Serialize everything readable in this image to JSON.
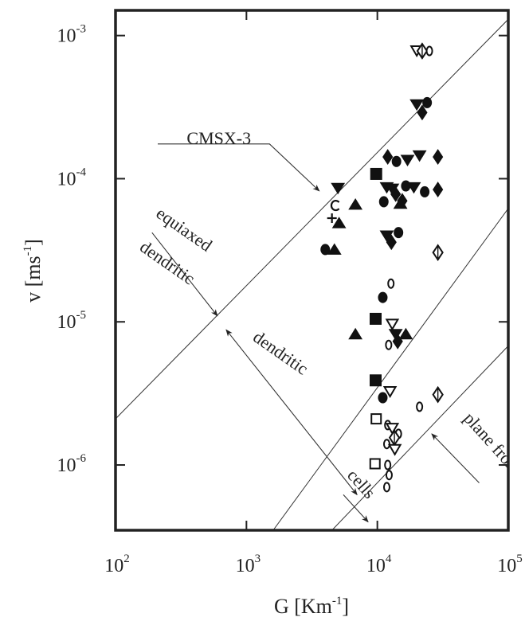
{
  "chart_data": {
    "type": "scatter",
    "x_scale": "log",
    "y_scale": "log",
    "xlim": [
      100,
      100000
    ],
    "ylim": [
      3.5e-07,
      0.0015
    ],
    "xlabel": {
      "main": "G [Km",
      "sup": "-1",
      "tail": "]"
    },
    "ylabel": {
      "main": "v [ms",
      "sup": "-1",
      "tail": "]"
    },
    "x_ticks": [
      {
        "value": 100,
        "base": "10",
        "exp": "2"
      },
      {
        "value": 1000,
        "base": "10",
        "exp": "3"
      },
      {
        "value": 10000,
        "base": "10",
        "exp": "4"
      },
      {
        "value": 100000,
        "base": "10",
        "exp": "5"
      }
    ],
    "y_ticks": [
      {
        "value": 1e-06,
        "base": "10",
        "exp": "-6"
      },
      {
        "value": 1e-05,
        "base": "10",
        "exp": "-5"
      },
      {
        "value": 0.0001,
        "base": "10",
        "exp": "-4"
      },
      {
        "value": 0.001,
        "base": "10",
        "exp": "-3"
      }
    ],
    "boundary_lines": [
      {
        "points": [
          [
            100,
            2.1e-06
          ],
          [
            100000,
            0.0013
          ]
        ]
      },
      {
        "points": [
          [
            1600,
            3.5e-07
          ],
          [
            100000,
            6.2e-05
          ]
        ]
      },
      {
        "points": [
          [
            4500,
            3.5e-07
          ],
          [
            100000,
            6.8e-06
          ]
        ]
      }
    ],
    "annotations": [
      {
        "text": "CMSX-3",
        "at": [
          350,
          0.000175
        ],
        "rotate": 0
      },
      {
        "text": "equiaxed",
        "at": [
          200,
          5.5e-05
        ],
        "rotate": 35
      },
      {
        "text": "dendritic",
        "at": [
          150,
          3.2e-05
        ],
        "rotate": 35
      },
      {
        "text": "dendritic",
        "at": [
          1100,
          7.5e-06
        ],
        "rotate": 35
      },
      {
        "text": "cells",
        "at": [
          5800,
          8.4e-07
        ],
        "rotate": 48
      },
      {
        "text": "plane front",
        "at": [
          45000,
          2.1e-06
        ],
        "rotate": 48
      }
    ],
    "arrows": [
      {
        "path": [
          [
            210,
            0.000175
          ],
          [
            1500,
            0.000175
          ],
          [
            3600,
            8.2e-05
          ]
        ],
        "head": "end"
      },
      {
        "path": [
          [
            190,
            4.2e-05
          ],
          [
            600,
            1.1e-05
          ]
        ],
        "head": "end"
      },
      {
        "path": [
          [
            700,
            8.8e-06
          ],
          [
            7000,
            6.2e-07
          ]
        ],
        "head": "both"
      },
      {
        "path": [
          [
            5500,
            6.2e-07
          ],
          [
            8500,
            4e-07
          ]
        ],
        "head": "end"
      },
      {
        "path": [
          [
            60000,
            7.5e-07
          ],
          [
            26000,
            1.65e-06
          ]
        ],
        "head": "end"
      }
    ],
    "points": [
      {
        "x": 20000,
        "y": 0.00078,
        "marker": "tri-down-open"
      },
      {
        "x": 22000,
        "y": 0.00078,
        "marker": "diamond-open"
      },
      {
        "x": 25000,
        "y": 0.00078,
        "marker": "circle-open"
      },
      {
        "x": 20000,
        "y": 0.00033,
        "marker": "tri-down"
      },
      {
        "x": 22000,
        "y": 0.00029,
        "marker": "diamond"
      },
      {
        "x": 24000,
        "y": 0.00034,
        "marker": "circle"
      },
      {
        "x": 12000,
        "y": 0.000142,
        "marker": "diamond"
      },
      {
        "x": 14000,
        "y": 0.000132,
        "marker": "circle"
      },
      {
        "x": 17000,
        "y": 0.000135,
        "marker": "tri-down"
      },
      {
        "x": 21000,
        "y": 0.000145,
        "marker": "tri-down"
      },
      {
        "x": 29000,
        "y": 0.000142,
        "marker": "diamond"
      },
      {
        "x": 9800,
        "y": 0.000108,
        "marker": "square"
      },
      {
        "x": 11800,
        "y": 8.7e-05,
        "marker": "tri-down"
      },
      {
        "x": 13000,
        "y": 8.5e-05,
        "marker": "tri-down"
      },
      {
        "x": 13800,
        "y": 7.8e-05,
        "marker": "diamond"
      },
      {
        "x": 15500,
        "y": 7e-05,
        "marker": "diamond"
      },
      {
        "x": 16500,
        "y": 8.9e-05,
        "marker": "circle"
      },
      {
        "x": 19000,
        "y": 8.7e-05,
        "marker": "tri-down"
      },
      {
        "x": 23000,
        "y": 8.1e-05,
        "marker": "circle"
      },
      {
        "x": 29000,
        "y": 8.4e-05,
        "marker": "diamond"
      },
      {
        "x": 11200,
        "y": 6.9e-05,
        "marker": "circle"
      },
      {
        "x": 15000,
        "y": 6.7e-05,
        "marker": "tri-up"
      },
      {
        "x": 5000,
        "y": 8.6e-05,
        "marker": "tri-down"
      },
      {
        "x": 6800,
        "y": 6.6e-05,
        "marker": "tri-up"
      },
      {
        "x": 4750,
        "y": 6.5e-05,
        "marker": "open-c"
      },
      {
        "x": 4500,
        "y": 5.3e-05,
        "marker": "plus"
      },
      {
        "x": 5100,
        "y": 4.9e-05,
        "marker": "tri-up"
      },
      {
        "x": 11800,
        "y": 4e-05,
        "marker": "tri-down"
      },
      {
        "x": 14500,
        "y": 4.2e-05,
        "marker": "circle"
      },
      {
        "x": 12800,
        "y": 3.6e-05,
        "marker": "diamond"
      },
      {
        "x": 4000,
        "y": 3.2e-05,
        "marker": "circle"
      },
      {
        "x": 4700,
        "y": 3.2e-05,
        "marker": "tri-up"
      },
      {
        "x": 29000,
        "y": 3.05e-05,
        "marker": "diamond-open"
      },
      {
        "x": 12700,
        "y": 1.85e-05,
        "marker": "circle-open"
      },
      {
        "x": 11000,
        "y": 1.48e-05,
        "marker": "circle"
      },
      {
        "x": 9700,
        "y": 1.05e-05,
        "marker": "square"
      },
      {
        "x": 13000,
        "y": 9.6e-06,
        "marker": "tri-down-open"
      },
      {
        "x": 13800,
        "y": 8.2e-06,
        "marker": "tri-down"
      },
      {
        "x": 16500,
        "y": 8.2e-06,
        "marker": "tri-up"
      },
      {
        "x": 6800,
        "y": 8.2e-06,
        "marker": "tri-up"
      },
      {
        "x": 14300,
        "y": 7.3e-06,
        "marker": "diamond"
      },
      {
        "x": 12200,
        "y": 6.9e-06,
        "marker": "circle-open"
      },
      {
        "x": 9700,
        "y": 3.9e-06,
        "marker": "square"
      },
      {
        "x": 12500,
        "y": 3.25e-06,
        "marker": "tri-down-open"
      },
      {
        "x": 11000,
        "y": 2.95e-06,
        "marker": "circle"
      },
      {
        "x": 29000,
        "y": 3.1e-06,
        "marker": "diamond-open"
      },
      {
        "x": 21000,
        "y": 2.55e-06,
        "marker": "circle-open"
      },
      {
        "x": 9800,
        "y": 2.1e-06,
        "marker": "square-open"
      },
      {
        "x": 12000,
        "y": 1.9e-06,
        "marker": "circle-open"
      },
      {
        "x": 13000,
        "y": 1.8e-06,
        "marker": "tri-down-open"
      },
      {
        "x": 14500,
        "y": 1.65e-06,
        "marker": "circle-open"
      },
      {
        "x": 13500,
        "y": 1.55e-06,
        "marker": "diamond-open"
      },
      {
        "x": 11800,
        "y": 1.4e-06,
        "marker": "circle-open"
      },
      {
        "x": 13600,
        "y": 1.28e-06,
        "marker": "tri-down-open"
      },
      {
        "x": 9600,
        "y": 1.02e-06,
        "marker": "square-open"
      },
      {
        "x": 12000,
        "y": 1e-06,
        "marker": "circle-open"
      },
      {
        "x": 12300,
        "y": 8.5e-07,
        "marker": "circle-open"
      },
      {
        "x": 11800,
        "y": 7e-07,
        "marker": "circle-open"
      }
    ]
  }
}
